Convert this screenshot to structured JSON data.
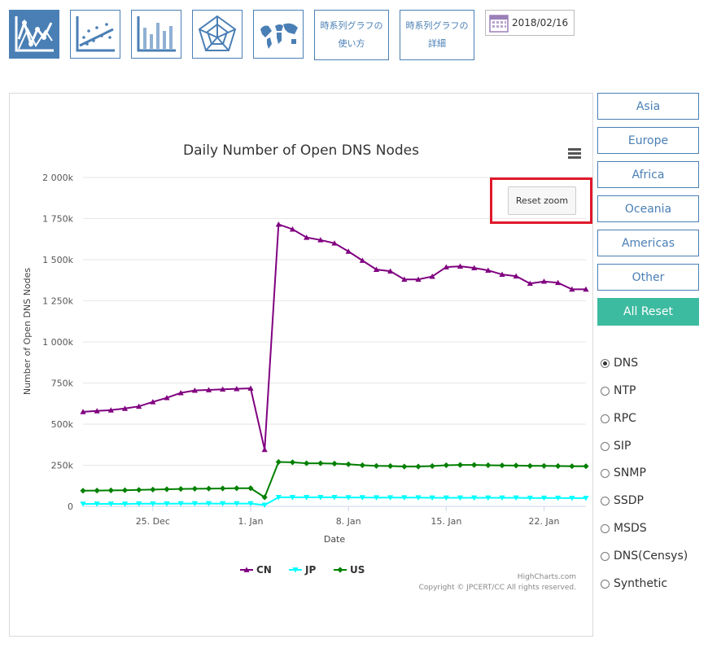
{
  "toolbar": {
    "icons": [
      "line-chart-icon",
      "scatter-chart-icon",
      "bar-chart-icon",
      "radar-chart-icon",
      "world-map-icon"
    ],
    "howto_line1": "時系列グラフの",
    "howto_line2": "使い方",
    "details_line1": "時系列グラフの",
    "details_line2": "詳細",
    "date": "2018/02/16"
  },
  "regions": [
    "Asia",
    "Europe",
    "Africa",
    "Oceania",
    "Americas",
    "Other"
  ],
  "all_reset": "All Reset",
  "protocols": {
    "selected": "DNS",
    "items": [
      "DNS",
      "NTP",
      "RPC",
      "SIP",
      "SNMP",
      "SSDP",
      "MSDS",
      "DNS(Censys)",
      "Synthetic"
    ]
  },
  "chart_menu_icon": "hamburger-menu-icon",
  "reset_zoom": "Reset zoom",
  "chart_data": {
    "type": "line",
    "title": "Daily Number of Open DNS Nodes",
    "xlabel": "Date",
    "ylabel": "Number of Open DNS Nodes",
    "x_tick_labels": [
      "25. Dec",
      "1. Jan",
      "8. Jan",
      "15. Jan",
      "22. Jan"
    ],
    "y_tick_labels": [
      "0",
      "250k",
      "500k",
      "750k",
      "1 000k",
      "1 250k",
      "1 500k",
      "1 750k",
      "2 000k"
    ],
    "ylim": [
      0,
      2000000
    ],
    "x": [
      "2017-12-20",
      "2017-12-21",
      "2017-12-22",
      "2017-12-23",
      "2017-12-24",
      "2017-12-25",
      "2017-12-26",
      "2017-12-27",
      "2017-12-28",
      "2017-12-29",
      "2017-12-30",
      "2017-12-31",
      "2018-01-01",
      "2018-01-02",
      "2018-01-03",
      "2018-01-04",
      "2018-01-05",
      "2018-01-06",
      "2018-01-07",
      "2018-01-08",
      "2018-01-09",
      "2018-01-10",
      "2018-01-11",
      "2018-01-12",
      "2018-01-13",
      "2018-01-14",
      "2018-01-15",
      "2018-01-16",
      "2018-01-17",
      "2018-01-18",
      "2018-01-19",
      "2018-01-20",
      "2018-01-21",
      "2018-01-22",
      "2018-01-23",
      "2018-01-24",
      "2018-01-25"
    ],
    "series": [
      {
        "name": "CN",
        "color": "#800080",
        "marker": "triangle-up",
        "values": [
          575000,
          580000,
          585000,
          595000,
          608000,
          635000,
          660000,
          690000,
          705000,
          708000,
          712000,
          715000,
          718000,
          345000,
          1715000,
          1685000,
          1635000,
          1620000,
          1600000,
          1550000,
          1495000,
          1440000,
          1430000,
          1380000,
          1380000,
          1398000,
          1455000,
          1460000,
          1450000,
          1435000,
          1410000,
          1400000,
          1355000,
          1368000,
          1360000,
          1320000,
          1320000
        ]
      },
      {
        "name": "JP",
        "color": "#00ffff",
        "marker": "triangle-down",
        "values": [
          15000,
          15000,
          15000,
          15000,
          16000,
          16000,
          16000,
          17000,
          17000,
          17000,
          17000,
          17000,
          17000,
          8000,
          55000,
          55000,
          55000,
          55000,
          55000,
          54000,
          54000,
          53000,
          53000,
          53000,
          53000,
          52000,
          52000,
          52000,
          52000,
          52000,
          52000,
          52000,
          51000,
          51000,
          51000,
          50000,
          50000
        ]
      },
      {
        "name": "US",
        "color": "#008000",
        "marker": "diamond",
        "values": [
          95000,
          96000,
          97000,
          98000,
          100000,
          102000,
          104000,
          106000,
          107000,
          108000,
          109000,
          110000,
          110000,
          55000,
          270000,
          268000,
          262000,
          262000,
          260000,
          256000,
          250000,
          246000,
          245000,
          242000,
          242000,
          245000,
          250000,
          252000,
          252000,
          250000,
          249000,
          248000,
          246000,
          246000,
          245000,
          244000,
          244000
        ]
      }
    ],
    "credits_line1": "HighCharts.com",
    "credits_line2": "Copyright © JPCERT/CC All rights reserved."
  }
}
